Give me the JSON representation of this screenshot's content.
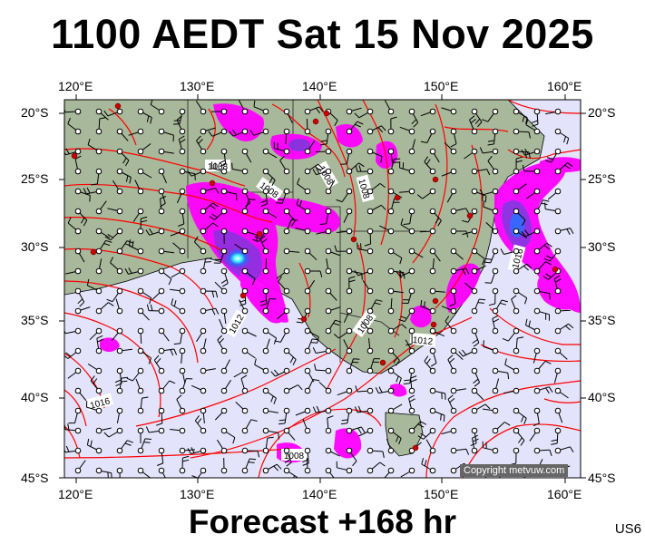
{
  "title": "1100 AEDT Sat 15 Nov 2025",
  "subtitle": "Forecast +168 hr",
  "code": "US6",
  "copyright": "Copyright metvuw.com",
  "axes": {
    "lon_labels": [
      "120°E",
      "130°E",
      "140°E",
      "150°E",
      "160°E"
    ],
    "lat_labels": [
      "20°S",
      "25°S",
      "30°S",
      "35°S",
      "40°S",
      "45°S"
    ]
  },
  "isobar_labels": [
    "1008",
    "1008",
    "1008",
    "1008",
    "1008",
    "1012",
    "1012",
    "1016",
    "1016",
    "1008"
  ],
  "colors": {
    "ocean": "#e3e3fb",
    "land": "#a8b89a",
    "isobar": "#ff0000",
    "precip_magenta": "#ff00ff",
    "precip_purple": "#8a2be2",
    "precip_blue": "#3060ff",
    "precip_cyan": "#40ffff"
  }
}
